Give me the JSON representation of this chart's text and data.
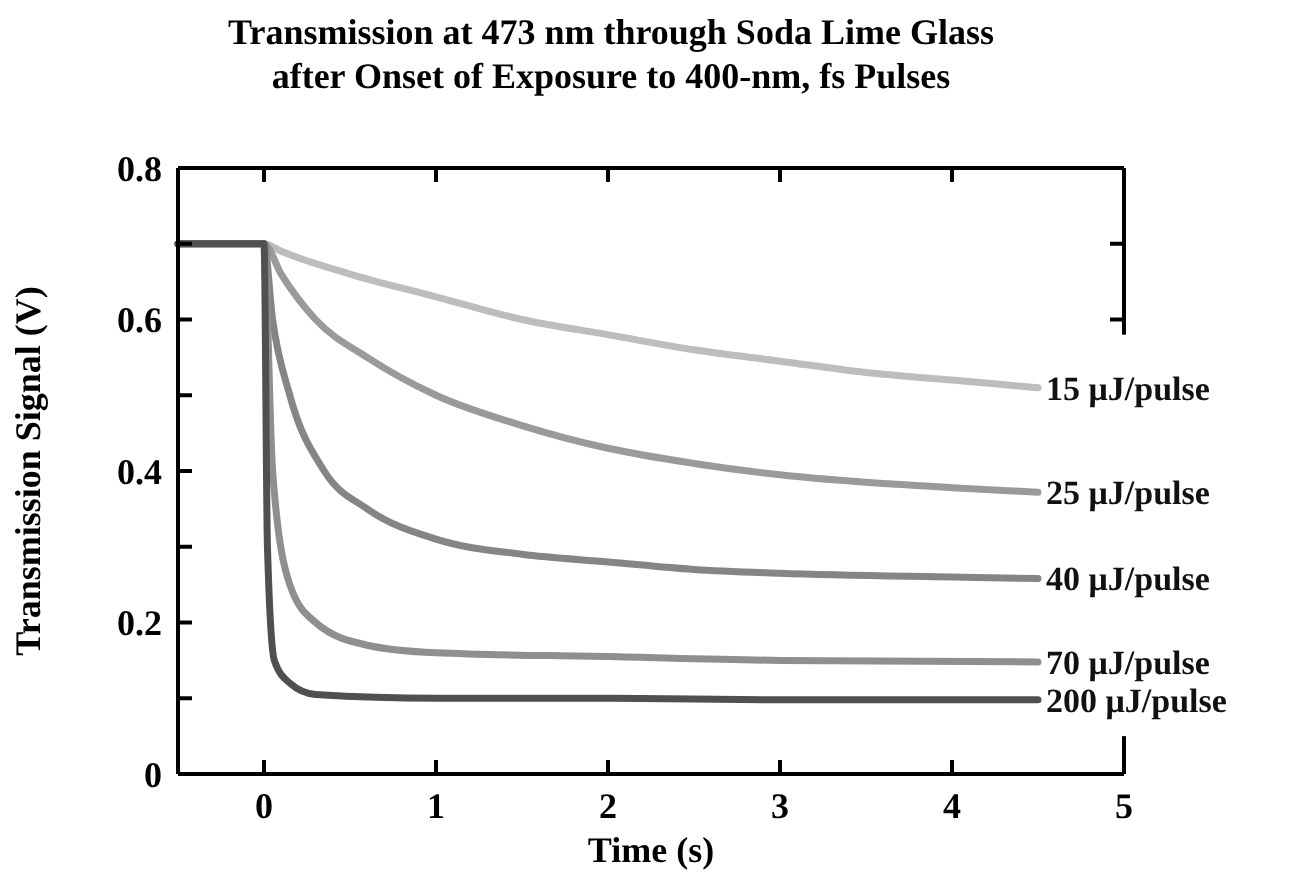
{
  "chart_data": {
    "type": "line",
    "title": "Transmission at 473 nm through Soda Lime Glass\nafter Onset of Exposure to 400-nm, fs Pulses",
    "xlabel": "Time (s)",
    "ylabel": "Transmission Signal (V)",
    "xlim": [
      -0.5,
      5
    ],
    "xticks": [
      0,
      1,
      2,
      3,
      4,
      5
    ],
    "ylim": [
      0,
      0.8
    ],
    "yticks": [
      0,
      {
        "value": 0.1,
        "label": null
      },
      0.2,
      {
        "value": 0.3,
        "label": null
      },
      0.4,
      {
        "value": 0.5,
        "label": null
      },
      0.6,
      {
        "value": 0.7,
        "label": null
      },
      0.8
    ],
    "grid": false,
    "marker": "none",
    "line_style": "solid",
    "series": [
      {
        "name": "15 μJ/pulse",
        "color": "#bdbdbd",
        "x": [
          -0.5,
          0,
          0.1,
          0.5,
          1,
          1.5,
          2,
          2.5,
          3,
          3.5,
          4,
          4.5
        ],
        "values": [
          0.7,
          0.7,
          0.69,
          0.66,
          0.63,
          0.6,
          0.58,
          0.56,
          0.545,
          0.53,
          0.52,
          0.51
        ]
      },
      {
        "name": "25 μJ/pulse",
        "color": "#9a9a9a",
        "x": [
          -0.5,
          0,
          0.1,
          0.3,
          0.6,
          1,
          1.5,
          2,
          2.5,
          3,
          3.5,
          4,
          4.5
        ],
        "values": [
          0.7,
          0.7,
          0.66,
          0.6,
          0.55,
          0.5,
          0.46,
          0.43,
          0.41,
          0.395,
          0.385,
          0.378,
          0.372
        ]
      },
      {
        "name": "40 μJ/pulse",
        "color": "#858585",
        "x": [
          -0.5,
          0,
          0.05,
          0.15,
          0.35,
          0.6,
          1,
          1.5,
          2,
          2.5,
          3,
          4,
          4.5
        ],
        "values": [
          0.7,
          0.7,
          0.6,
          0.5,
          0.4,
          0.35,
          0.31,
          0.29,
          0.28,
          0.27,
          0.265,
          0.26,
          0.258
        ]
      },
      {
        "name": "70 μJ/pulse",
        "color": "#8f8f8f",
        "x": [
          -0.5,
          0,
          0.05,
          0.15,
          0.3,
          0.6,
          1,
          2,
          3,
          4.5
        ],
        "values": [
          0.7,
          0.7,
          0.4,
          0.25,
          0.2,
          0.17,
          0.16,
          0.155,
          0.15,
          0.148
        ]
      },
      {
        "name": "200 μJ/pulse",
        "color": "#505050",
        "x": [
          -0.5,
          0,
          0.02,
          0.06,
          0.15,
          0.3,
          1,
          2,
          3,
          4.5
        ],
        "values": [
          0.7,
          0.7,
          0.3,
          0.15,
          0.12,
          0.105,
          0.1,
          0.1,
          0.098,
          0.098
        ]
      }
    ]
  }
}
